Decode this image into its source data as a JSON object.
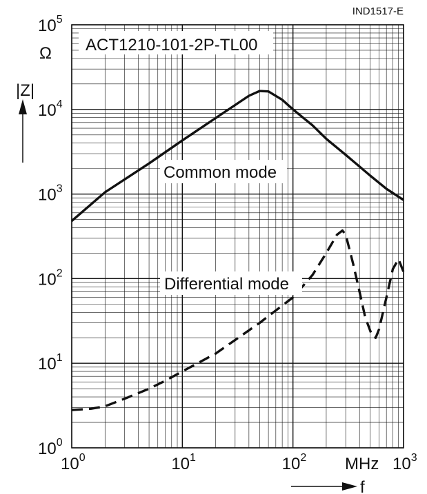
{
  "chart_data": {
    "type": "line",
    "figure_id": "IND1517-E",
    "title": "ACT1210-101-2P-TL00",
    "xlabel": "f",
    "x_unit": "MHz",
    "ylabel": "|Z|",
    "y_unit": "Ω",
    "xscale": "log",
    "yscale": "log",
    "xlim": [
      1,
      1000
    ],
    "ylim": [
      1,
      100000
    ],
    "x_ticks": [
      {
        "base": "10",
        "exp": "0"
      },
      {
        "base": "10",
        "exp": "1"
      },
      {
        "base": "10",
        "exp": "2"
      },
      {
        "base": "10",
        "exp": "3"
      }
    ],
    "y_ticks": [
      {
        "base": "10",
        "exp": "0"
      },
      {
        "base": "10",
        "exp": "1"
      },
      {
        "base": "10",
        "exp": "2"
      },
      {
        "base": "10",
        "exp": "3"
      },
      {
        "base": "10",
        "exp": "4"
      },
      {
        "base": "10",
        "exp": "5"
      }
    ],
    "grid": true,
    "series": [
      {
        "name": "Common mode",
        "style": "solid",
        "x": [
          1,
          2,
          5,
          10,
          20,
          40,
          50,
          60,
          80,
          100,
          150,
          200,
          300,
          500,
          700,
          1000
        ],
        "y": [
          480,
          1050,
          2300,
          4300,
          7900,
          14500,
          16500,
          16300,
          13000,
          10000,
          6500,
          4500,
          2900,
          1650,
          1150,
          850
        ]
      },
      {
        "name": "Differential mode",
        "style": "dashed",
        "x": [
          1,
          1.5,
          2,
          3,
          5,
          7,
          10,
          20,
          50,
          100,
          150,
          200,
          250,
          280,
          300,
          350,
          400,
          450,
          520,
          560,
          600,
          700,
          800,
          900,
          1000
        ],
        "y": [
          2.8,
          2.9,
          3.1,
          3.8,
          5,
          6.2,
          8,
          13,
          30,
          60,
          110,
          200,
          330,
          370,
          330,
          150,
          70,
          35,
          21,
          20,
          25,
          60,
          130,
          170,
          120
        ]
      }
    ]
  }
}
